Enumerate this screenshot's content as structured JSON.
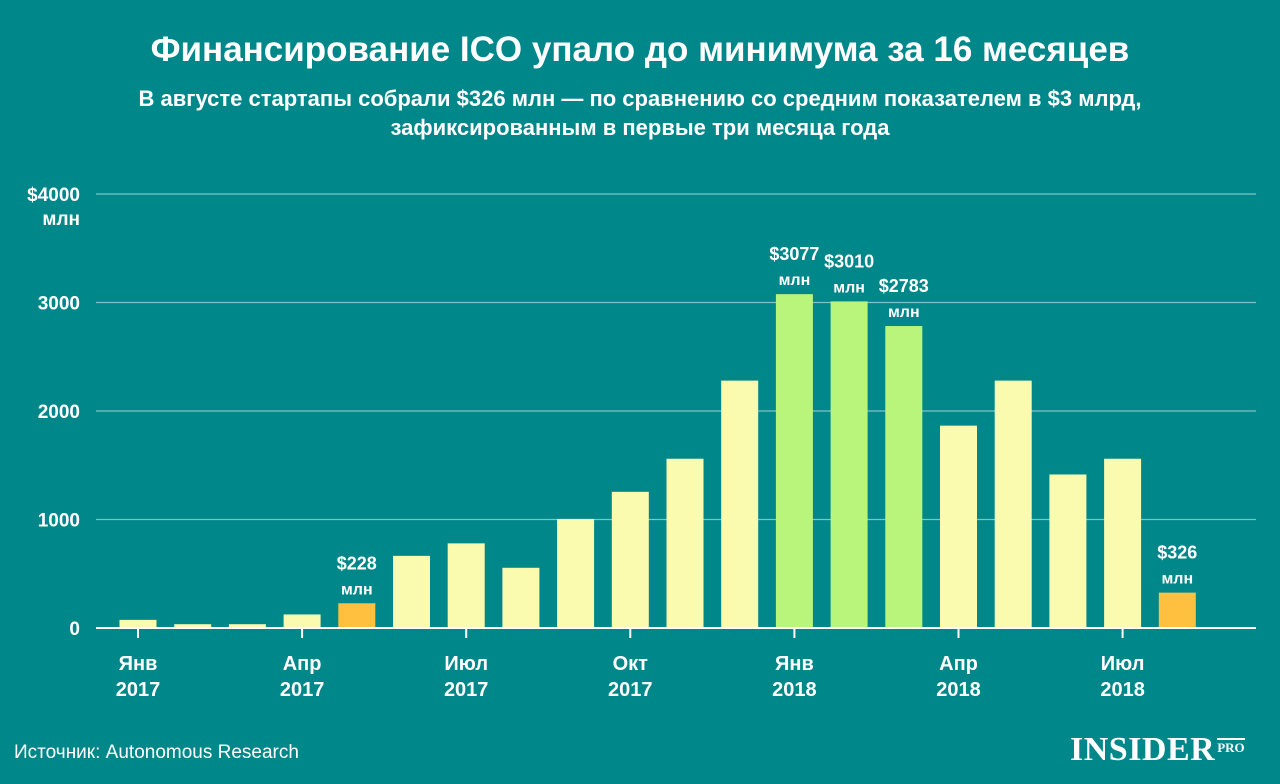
{
  "header": {
    "title": "Финансирование ICO упало до минимума за 16 месяцев",
    "subtitle_line1": "В августе стартапы собрали $326 млн — по сравнению со средним показателем в $3 млрд,",
    "subtitle_line2": "зафиксированным в первые три месяца года"
  },
  "footer": {
    "source": "Источник: Autonomous Research",
    "logo_main": "INSIDER",
    "logo_sub": "PRO"
  },
  "chart_data": {
    "type": "bar",
    "ylim": [
      0,
      4000
    ],
    "y_ticks": [
      {
        "value": 4000,
        "line1": "$4000",
        "line2": "млн"
      },
      {
        "value": 3000,
        "line1": "3000",
        "line2": ""
      },
      {
        "value": 2000,
        "line1": "2000",
        "line2": ""
      },
      {
        "value": 1000,
        "line1": "1000",
        "line2": ""
      },
      {
        "value": 0,
        "line1": "0",
        "line2": ""
      }
    ],
    "x_ticks": [
      {
        "index": 0,
        "line1": "Янв",
        "line2": "2017"
      },
      {
        "index": 3,
        "line1": "Апр",
        "line2": "2017"
      },
      {
        "index": 6,
        "line1": "Июл",
        "line2": "2017"
      },
      {
        "index": 9,
        "line1": "Окт",
        "line2": "2017"
      },
      {
        "index": 12,
        "line1": "Янв",
        "line2": "2018"
      },
      {
        "index": 15,
        "line1": "Апр",
        "line2": "2018"
      },
      {
        "index": 18,
        "line1": "Июл",
        "line2": "2018"
      }
    ],
    "bars": [
      {
        "value": 75,
        "highlight": "normal"
      },
      {
        "value": 35,
        "highlight": "normal"
      },
      {
        "value": 35,
        "highlight": "normal"
      },
      {
        "value": 125,
        "highlight": "normal"
      },
      {
        "value": 228,
        "highlight": "low",
        "label1": "$228",
        "label2": "млн"
      },
      {
        "value": 665,
        "highlight": "normal"
      },
      {
        "value": 780,
        "highlight": "normal"
      },
      {
        "value": 555,
        "highlight": "normal"
      },
      {
        "value": 1005,
        "highlight": "normal"
      },
      {
        "value": 1255,
        "highlight": "normal"
      },
      {
        "value": 1560,
        "highlight": "normal"
      },
      {
        "value": 2280,
        "highlight": "normal"
      },
      {
        "value": 3077,
        "highlight": "high",
        "label1": "$3077",
        "label2": "млн"
      },
      {
        "value": 3010,
        "highlight": "high",
        "label1": "$3010",
        "label2": "млн"
      },
      {
        "value": 2783,
        "highlight": "high",
        "label1": "$2783",
        "label2": "млн"
      },
      {
        "value": 1865,
        "highlight": "normal"
      },
      {
        "value": 2280,
        "highlight": "normal"
      },
      {
        "value": 1415,
        "highlight": "normal"
      },
      {
        "value": 1560,
        "highlight": "normal"
      },
      {
        "value": 326,
        "highlight": "low",
        "label1": "$326",
        "label2": "млн"
      }
    ],
    "colors": {
      "normal": "#fbfbb0",
      "high": "#b9f47b",
      "low": "#ffbf3f",
      "background": "#00878a",
      "grid": "#7fc4c4",
      "axis": "#ffffff"
    }
  }
}
